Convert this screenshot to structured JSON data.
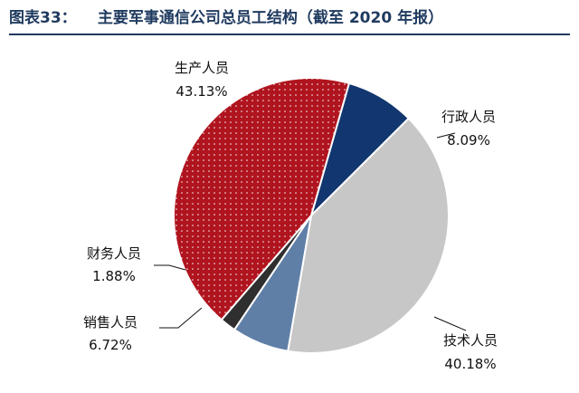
{
  "header": {
    "prefix": "图表33：",
    "title": "主要军事通信公司总员工结构（截至 2020 年报）"
  },
  "chart_data": {
    "type": "pie",
    "start_angle_deg": 16,
    "direction": "clockwise",
    "slices": [
      {
        "label": "行政人员",
        "value": 8.09,
        "percent_label": "8.09%",
        "color": "#12366f",
        "pattern": "solid"
      },
      {
        "label": "技术人员",
        "value": 40.18,
        "percent_label": "40.18%",
        "color": "#c7c7c7",
        "pattern": "solid"
      },
      {
        "label": "销售人员",
        "value": 6.72,
        "percent_label": "6.72%",
        "color": "#5f7fa7",
        "pattern": "solid"
      },
      {
        "label": "财务人员",
        "value": 1.88,
        "percent_label": "1.88%",
        "color": "#2f2f2f",
        "pattern": "solid"
      },
      {
        "label": "生产人员",
        "value": 43.13,
        "percent_label": "43.13%",
        "color": "#b0141e",
        "pattern": "dots"
      }
    ]
  }
}
